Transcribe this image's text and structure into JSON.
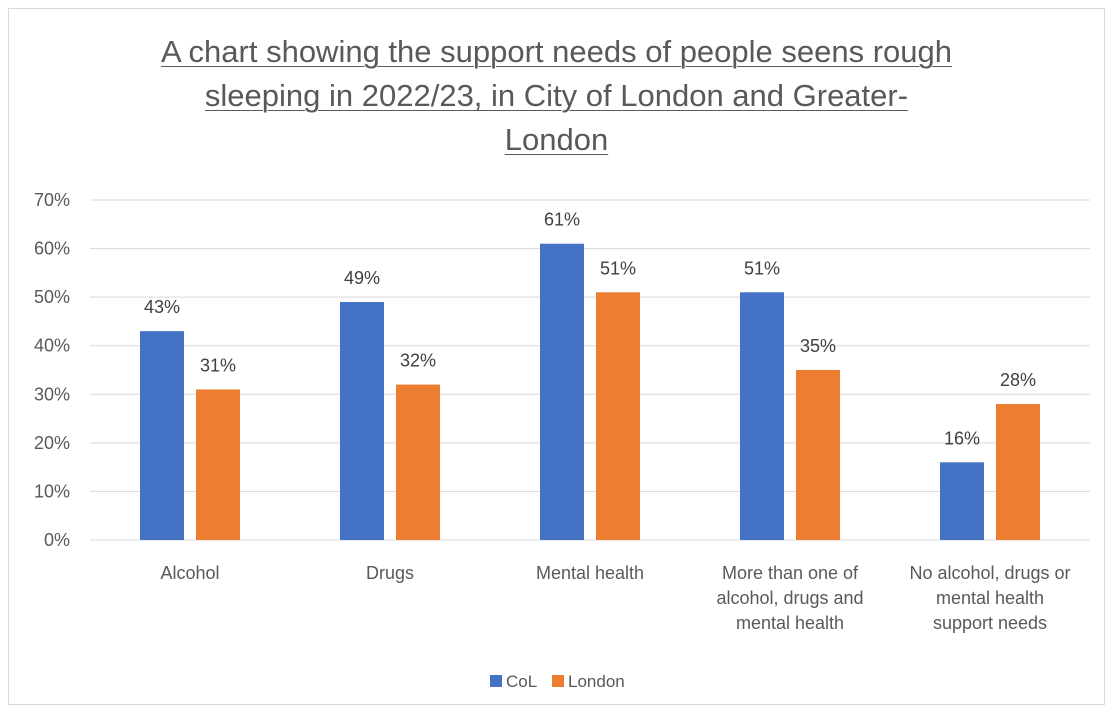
{
  "chart_data": {
    "type": "bar",
    "title_lines": [
      "A chart showing the support needs of people seens rough",
      "sleeping in 2022/23, in City of London and Greater-",
      "London"
    ],
    "categories": [
      [
        "Alcohol"
      ],
      [
        "Drugs"
      ],
      [
        "Mental health"
      ],
      [
        "More than one of",
        "alcohol, drugs and",
        "mental health"
      ],
      [
        "No alcohol, drugs or",
        "mental health",
        "support needs"
      ]
    ],
    "series": [
      {
        "name": "CoL",
        "color": "#4472c4",
        "values": [
          43,
          49,
          61,
          51,
          16
        ],
        "labels": [
          "43%",
          "49%",
          "61%",
          "51%",
          "16%"
        ]
      },
      {
        "name": "London",
        "color": "#ed7d31",
        "values": [
          31,
          32,
          51,
          35,
          28
        ],
        "labels": [
          "31%",
          "32%",
          "51%",
          "35%",
          "28%"
        ]
      }
    ],
    "yticks": [
      "0%",
      "10%",
      "20%",
      "30%",
      "40%",
      "50%",
      "60%",
      "70%"
    ],
    "ylim": [
      0,
      70
    ],
    "grid": true,
    "legend_position": "bottom",
    "xlabel": "",
    "ylabel": ""
  }
}
